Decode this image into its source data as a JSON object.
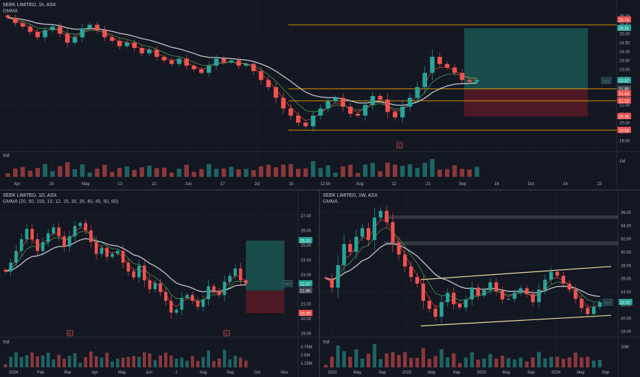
{
  "colors": {
    "bg": "#131722",
    "grid": "#1e222d",
    "axis_text": "#b2b5be",
    "up": "#26a69a",
    "down": "#ef5350",
    "orange": "#f7a600",
    "white_line": "#d1d4dc",
    "red_ma": "#f44336",
    "green_ma": "#4caf50",
    "profit": "#1b5e57",
    "loss": "#5b1a25",
    "profile_blue": "#2962ff",
    "profile_orange": "#ff9800"
  },
  "panes": [
    {
      "id": "hourly",
      "title": "SEEK LIMITED, 1h, ASX",
      "subtitle": "GMMA",
      "volume_label": "Vol",
      "volume_scale": "1M",
      "symbol_badge": "SEK",
      "price_ticks": [
        "26.00",
        "25.50",
        "25.00",
        "24.50",
        "24.00",
        "23.50",
        "23.00",
        "22.50",
        "22.00",
        "21.50",
        "21.00",
        "20.50",
        "20.00",
        "19.50",
        "19.00"
      ],
      "time_ticks": [
        "Apr",
        "15",
        "May",
        "13",
        "22",
        "Jun",
        "17",
        "Jul",
        "15",
        "12:00",
        "Aug",
        "12",
        "21",
        "Sep",
        "16",
        "Oct",
        "14",
        "23"
      ],
      "price_labels": [
        "25.78",
        "25.31",
        "22.37",
        "21.90",
        "21.63",
        "21.23",
        "20.35",
        "19.58"
      ],
      "event_markers": [
        "E"
      ]
    },
    {
      "id": "daily",
      "title": "SEEK LIMITED, 1D, ASX",
      "subtitle": "GMMA (20, 50, 150, 10, 12, 15, 30, 35, 40, 45, 50, 60)",
      "volume_label": "Vol",
      "volume_scale": [
        "3.75M",
        "2.5M",
        "1.25M"
      ],
      "symbol_badge": "SEK",
      "price_ticks": [
        "27.00",
        "26.00",
        "25.00",
        "24.00",
        "23.00",
        "22.00",
        "21.00",
        "20.00",
        "19.00"
      ],
      "time_ticks": [
        "2024",
        "Feb",
        "Mar",
        "Apr",
        "May",
        "Jun",
        "J",
        "Aug",
        "Sep",
        "Oct",
        "Nov"
      ],
      "price_labels": [
        "25.31",
        "22.37",
        "21.90",
        "20.35"
      ],
      "event_markers": [
        "E",
        "E"
      ]
    },
    {
      "id": "weekly",
      "title": "SEEK LIMITED, 1W, ASX",
      "subtitle": "GMMA",
      "volume_label": "Vol",
      "volume_scale": [
        "10M"
      ],
      "symbol_badge": "SEK",
      "price_ticks": [
        "36.00",
        "34.00",
        "32.00",
        "30.00",
        "28.00",
        "26.00",
        "24.00",
        "22.00",
        "20.00",
        "18.00"
      ],
      "time_ticks": [
        "2021",
        "May",
        "Sep",
        "2022",
        "May",
        "Sep",
        "2023",
        "May",
        "Sep",
        "2024",
        "May",
        "Sep"
      ],
      "price_labels": [
        "22.37"
      ]
    }
  ],
  "chart_data": [
    {
      "type": "candlestick",
      "title": "SEEK LIMITED, 1h, ASX",
      "ylim": [
        19.0,
        26.2
      ],
      "levels": [
        25.5,
        21.9,
        21.23,
        19.58
      ],
      "position": {
        "entry": 21.9,
        "target": 25.31,
        "stop": 20.35
      },
      "close": [
        25.9,
        25.6,
        25.4,
        25.1,
        24.8,
        25.2,
        25.4,
        25.0,
        24.5,
        24.8,
        25.3,
        25.5,
        25.2,
        24.8,
        24.6,
        24.3,
        24.5,
        24.2,
        23.9,
        24.1,
        23.7,
        23.5,
        23.3,
        23.6,
        23.2,
        23.0,
        22.8,
        23.2,
        23.6,
        23.4,
        23.5,
        23.2,
        23.3,
        22.9,
        22.4,
        22.0,
        21.4,
        20.8,
        20.4,
        20.0,
        19.8,
        20.4,
        20.8,
        21.2,
        21.4,
        20.9,
        20.5,
        20.4,
        21.0,
        21.5,
        21.3,
        20.6,
        20.3,
        20.9,
        21.4,
        22.0,
        22.8,
        23.7,
        23.3,
        23.1,
        22.8,
        22.4,
        22.3,
        22.4
      ]
    },
    {
      "type": "candlestick",
      "title": "SEEK LIMITED, 1D, ASX",
      "ylim": [
        19.0,
        27.5
      ],
      "position": {
        "entry": 21.9,
        "target": 25.31,
        "stop": 20.35
      },
      "close": [
        23.2,
        23.8,
        24.6,
        25.4,
        26.1,
        25.4,
        24.6,
        25.2,
        25.8,
        26.2,
        25.6,
        24.9,
        25.6,
        26.3,
        26.5,
        26.0,
        25.2,
        24.4,
        24.8,
        24.2,
        24.4,
        24.6,
        23.8,
        23.2,
        22.8,
        23.6,
        22.6,
        22.0,
        22.4,
        21.8,
        21.2,
        20.4,
        20.6,
        21.4,
        21.6,
        21.2,
        20.8,
        21.3,
        22.2,
        21.9,
        21.6,
        22.5,
        22.9,
        23.4,
        22.6,
        22.37
      ]
    },
    {
      "type": "candlestick",
      "title": "SEEK LIMITED, 1W, ASX",
      "ylim": [
        17.5,
        37.0
      ],
      "channel_upper": [
        [
          0.0,
          25.8
        ],
        [
          1.0,
          27.8
        ]
      ],
      "channel_lower": [
        [
          0.0,
          18.8
        ],
        [
          1.0,
          20.4
        ]
      ],
      "close": [
        26.0,
        24.6,
        28.0,
        31.2,
        30.0,
        32.3,
        33.6,
        31.8,
        35.2,
        36.2,
        34.5,
        31.4,
        29.6,
        27.8,
        26.2,
        25.2,
        22.6,
        21.4,
        20.2,
        22.4,
        23.8,
        22.1,
        21.6,
        22.8,
        24.6,
        23.4,
        24.2,
        25.4,
        24.1,
        22.8,
        22.9,
        23.8,
        24.5,
        23.6,
        22.4,
        24.3,
        25.8,
        27.0,
        26.4,
        25.2,
        24.3,
        22.9,
        21.5,
        20.6,
        21.7,
        22.37
      ]
    }
  ]
}
